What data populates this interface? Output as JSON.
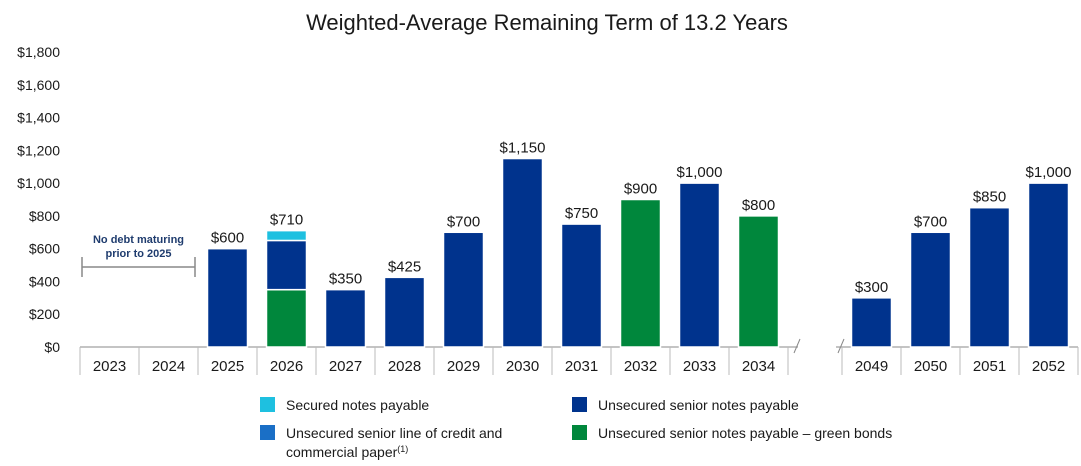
{
  "chart_data": {
    "type": "bar",
    "title": "Weighted-Average Remaining Term of 13.2 Years",
    "xlabel": "",
    "ylabel": "",
    "ylim": [
      0,
      1800
    ],
    "yticks": [
      0,
      200,
      400,
      600,
      800,
      1000,
      1200,
      1400,
      1600,
      1800
    ],
    "ytick_labels": [
      "$0",
      "$200",
      "$400",
      "$600",
      "$800",
      "$1,000",
      "$1,200",
      "$1,400",
      "$1,600",
      "$1,800"
    ],
    "grid": false,
    "axis_break": "between 2034 and 2049",
    "categories": [
      "2023",
      "2024",
      "2025",
      "2026",
      "2027",
      "2028",
      "2029",
      "2030",
      "2031",
      "2032",
      "2033",
      "2034",
      "2049",
      "2050",
      "2051",
      "2052"
    ],
    "series": [
      {
        "name": "Secured notes payable",
        "color": "#1ec0e0",
        "values": [
          0,
          0,
          0,
          60,
          0,
          0,
          0,
          0,
          0,
          0,
          0,
          0,
          0,
          0,
          0,
          0
        ]
      },
      {
        "name": "Unsecured senior line of credit and commercial paper(1)",
        "color": "#1a6fc6",
        "values": [
          0,
          0,
          0,
          0,
          0,
          0,
          0,
          0,
          0,
          0,
          0,
          0,
          0,
          0,
          0,
          0
        ]
      },
      {
        "name": "Unsecured senior notes payable",
        "color": "#00338d",
        "values": [
          0,
          0,
          600,
          300,
          350,
          425,
          700,
          1150,
          750,
          0,
          1000,
          0,
          300,
          700,
          850,
          1000
        ]
      },
      {
        "name": "Unsecured senior notes payable – green bonds",
        "color": "#00873c",
        "values": [
          0,
          0,
          0,
          350,
          0,
          0,
          0,
          0,
          0,
          900,
          0,
          800,
          0,
          0,
          0,
          0
        ]
      }
    ],
    "data_labels": [
      "",
      "",
      "$600",
      "$710",
      "$350",
      "$425",
      "$700",
      "$1,150",
      "$750",
      "$900",
      "$1,000",
      "$800",
      "$300",
      "$700",
      "$850",
      "$1,000"
    ],
    "annotations": [
      {
        "text_line1": "No debt maturing",
        "text_line2": "prior to 2025",
        "span": [
          "2023",
          "2024"
        ]
      }
    ],
    "legend": {
      "placement": "bottom",
      "items": [
        {
          "label": "Secured notes payable",
          "color": "#1ec0e0"
        },
        {
          "label": "Unsecured senior notes payable",
          "color": "#00338d"
        },
        {
          "label": "Unsecured senior line of credit and",
          "label_line2": "commercial paper",
          "superscript": "(1)",
          "color": "#1a6fc6"
        },
        {
          "label": "Unsecured senior notes payable – green bonds",
          "color": "#00873c"
        }
      ]
    }
  }
}
